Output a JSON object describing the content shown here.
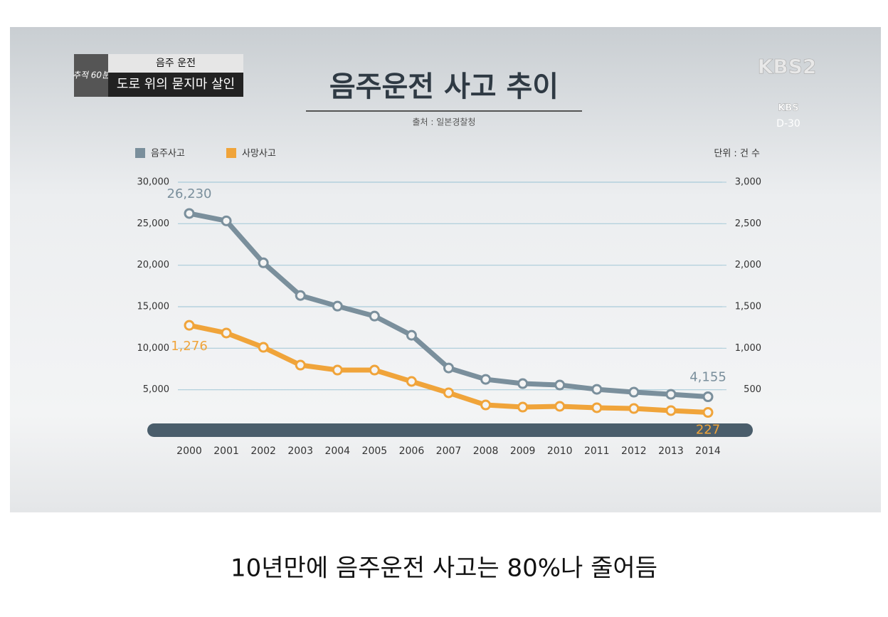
{
  "overlay": {
    "program": "추적 60분",
    "topic": "음주 운전",
    "headline": "도로 위의 묻지마 살인",
    "channel": "KBS2",
    "campaign": "KBS",
    "countdown": "D-30"
  },
  "caption": "10년만에 음주운전 사고는 80%나 줄어듬",
  "chart_data": {
    "type": "line",
    "title": "음주운전 사고 추이",
    "subtitle": "출처 : 일본경찰청",
    "unit_note": "단위 : 건 수",
    "categories": [
      "2000",
      "2001",
      "2002",
      "2003",
      "2004",
      "2005",
      "2006",
      "2007",
      "2008",
      "2009",
      "2010",
      "2011",
      "2012",
      "2013",
      "2014"
    ],
    "series": [
      {
        "name": "음주사고",
        "color": "#7a8f9c",
        "values": [
          26230,
          25340,
          20290,
          16350,
          15070,
          13870,
          11560,
          7620,
          6250,
          5740,
          5570,
          5050,
          4710,
          4450,
          4155
        ],
        "value_labels": [
          "26,230",
          null,
          null,
          null,
          null,
          null,
          null,
          null,
          null,
          null,
          null,
          null,
          null,
          null,
          "4,155"
        ]
      },
      {
        "name": "사망사고",
        "color": "#f0a43a",
        "axis": "y2",
        "values": [
          1276,
          1183,
          1011,
          797,
          737,
          737,
          600,
          463,
          317,
          291,
          300,
          283,
          274,
          249,
          227
        ],
        "value_labels": [
          "1,276",
          null,
          null,
          null,
          null,
          null,
          null,
          null,
          null,
          null,
          null,
          null,
          null,
          null,
          "227"
        ]
      }
    ],
    "ylim": [
      0,
      30000
    ],
    "yticks": [
      {
        "value": 5000,
        "label": "5,000"
      },
      {
        "value": 10000,
        "label": "10,000"
      },
      {
        "value": 15000,
        "label": "15,000"
      },
      {
        "value": 20000,
        "label": "20,000"
      },
      {
        "value": 25000,
        "label": "25,000"
      },
      {
        "value": 30000,
        "label": "30,000"
      }
    ],
    "y2lim": [
      0,
      3000
    ],
    "y2ticks": [
      500,
      {
        "value": 1000,
        "label": "1,000"
      },
      {
        "value": 1500,
        "label": "1,500"
      },
      {
        "value": 2000,
        "label": "2,000"
      },
      {
        "value": 2500,
        "label": "2,500"
      },
      {
        "value": 3000,
        "label": "3,000"
      }
    ],
    "grid": true,
    "legend": "top-left"
  }
}
